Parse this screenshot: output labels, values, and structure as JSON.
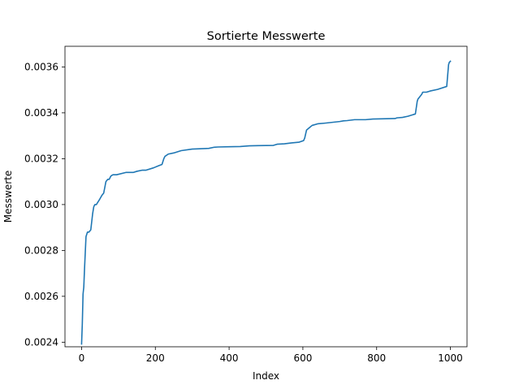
{
  "chart_data": {
    "type": "line",
    "title": "Sortierte Messwerte",
    "xlabel": "Index",
    "ylabel": "Messwerte",
    "xlim": [
      -45,
      1045
    ],
    "ylim": [
      0.00238,
      0.00369
    ],
    "xticks": [
      0,
      200,
      400,
      600,
      800,
      1000
    ],
    "xtick_labels": [
      "0",
      "200",
      "400",
      "600",
      "800",
      "1000"
    ],
    "yticks": [
      0.0024,
      0.0026,
      0.0028,
      0.003,
      0.0032,
      0.0034,
      0.0036
    ],
    "ytick_labels": [
      "0.0024",
      "0.0026",
      "0.0028",
      "0.0030",
      "0.0032",
      "0.0034",
      "0.0036"
    ],
    "grid": false,
    "line_color": "#1f77b4",
    "series": [
      {
        "x": [
          0,
          2,
          4,
          6,
          8,
          12,
          16,
          20,
          25,
          30,
          33,
          36,
          40,
          48,
          55,
          60,
          66,
          71,
          75,
          78,
          80,
          85,
          95,
          120,
          140,
          150,
          165,
          175,
          195,
          210,
          218,
          223,
          226,
          235,
          250,
          270,
          300,
          345,
          360,
          370,
          400,
          430,
          455,
          480,
          520,
          530,
          550,
          570,
          590,
          602,
          605,
          610,
          625,
          640,
          660,
          700,
          710,
          720,
          740,
          770,
          790,
          850,
          855,
          870,
          885,
          905,
          910,
          912,
          922,
          925,
          935,
          945,
          965,
          990,
          995,
          997,
          1000
        ],
        "values": [
          0.002392,
          0.00248,
          0.00261,
          0.00264,
          0.00272,
          0.00286,
          0.00288,
          0.00288,
          0.00289,
          0.00296,
          0.00299,
          0.003,
          0.003,
          0.00302,
          0.00304,
          0.00305,
          0.0031,
          0.00311,
          0.00311,
          0.00312,
          0.003125,
          0.00313,
          0.00313,
          0.00314,
          0.00314,
          0.003145,
          0.00315,
          0.00315,
          0.00316,
          0.00317,
          0.003175,
          0.0032,
          0.00321,
          0.00322,
          0.003225,
          0.003235,
          0.003242,
          0.003245,
          0.00325,
          0.003251,
          0.003252,
          0.003253,
          0.003256,
          0.003257,
          0.003258,
          0.003263,
          0.003265,
          0.003269,
          0.003272,
          0.003279,
          0.00329,
          0.003325,
          0.003345,
          0.003352,
          0.003355,
          0.003362,
          0.003365,
          0.003366,
          0.00337,
          0.00337,
          0.003373,
          0.003375,
          0.003378,
          0.00338,
          0.003385,
          0.003395,
          0.00345,
          0.00346,
          0.00348,
          0.00349,
          0.00349,
          0.003495,
          0.003502,
          0.003515,
          0.00361,
          0.00362,
          0.003625
        ]
      }
    ]
  }
}
